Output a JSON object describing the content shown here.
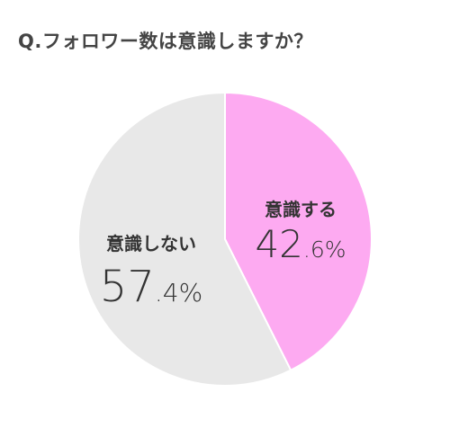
{
  "title": "Q.フォロワー数は意識しますか？",
  "chart_data": {
    "type": "pie",
    "title": "Q.フォロワー数は意識しますか？",
    "slices": [
      {
        "label": "意識する",
        "value": 42.6,
        "whole": "42",
        "frac": ".6",
        "unit": "%",
        "color": "#fdaaf1"
      },
      {
        "label": "意識しない",
        "value": 57.4,
        "whole": "57",
        "frac": ".4",
        "unit": "%",
        "color": "#e8e8e8"
      }
    ],
    "start": "12 o'clock",
    "direction": "clockwise"
  }
}
